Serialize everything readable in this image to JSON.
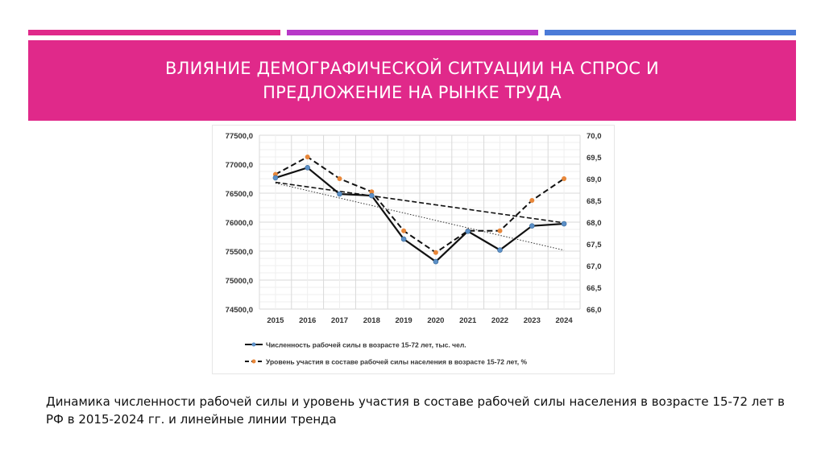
{
  "colors": {
    "pink": "#e0298a",
    "purple": "#b838c8",
    "blue": "#4b7bd8",
    "series1_marker": "#5b8fc7",
    "series2_marker": "#e8873a"
  },
  "slide": {
    "title": "ВЛИЯНИЕ ДЕМОГРАФИЧЕСКОЙ СИТУАЦИИ НА СПРОС И ПРЕДЛОЖЕНИЕ НА РЫНКЕ ТРУДА",
    "caption": "Динамика численности рабочей силы и уровень участия в составе рабочей силы населения в возрасте 15-72 лет в РФ в 2015-2024 гг. и линейные линии тренда"
  },
  "chart_data": {
    "type": "line",
    "categories": [
      "2015",
      "2016",
      "2017",
      "2018",
      "2019",
      "2020",
      "2021",
      "2022",
      "2023",
      "2024"
    ],
    "y_left": {
      "range": [
        74500,
        77500
      ],
      "ticks": [
        "74500,0",
        "75000,0",
        "75500,0",
        "76000,0",
        "76500,0",
        "77000,0",
        "77500,0"
      ]
    },
    "y_right": {
      "range": [
        66,
        70
      ],
      "ticks": [
        "66,0",
        "66,5",
        "67,0",
        "67,5",
        "68,0",
        "68,5",
        "69,0",
        "69,5",
        "70,0"
      ]
    },
    "grid": true,
    "legend_position": "bottom",
    "series": [
      {
        "name": "Численность рабочей силы в возрасте 15-72 лет, тыс. чел.",
        "axis": "left",
        "style": "solid",
        "trendline": "dotted linear",
        "values": [
          76765,
          76940,
          76486,
          76458,
          75708,
          75319,
          75843,
          75519,
          75935,
          75972
        ]
      },
      {
        "name": "Уровень участия в составе рабочей силы населения в возрасте 15-72 лет, %",
        "axis": "right",
        "style": "dashed",
        "trendline": "dashed linear",
        "values": [
          69.1,
          69.5,
          69.0,
          68.7,
          67.8,
          67.3,
          67.8,
          67.8,
          68.5,
          69.0
        ]
      }
    ]
  }
}
